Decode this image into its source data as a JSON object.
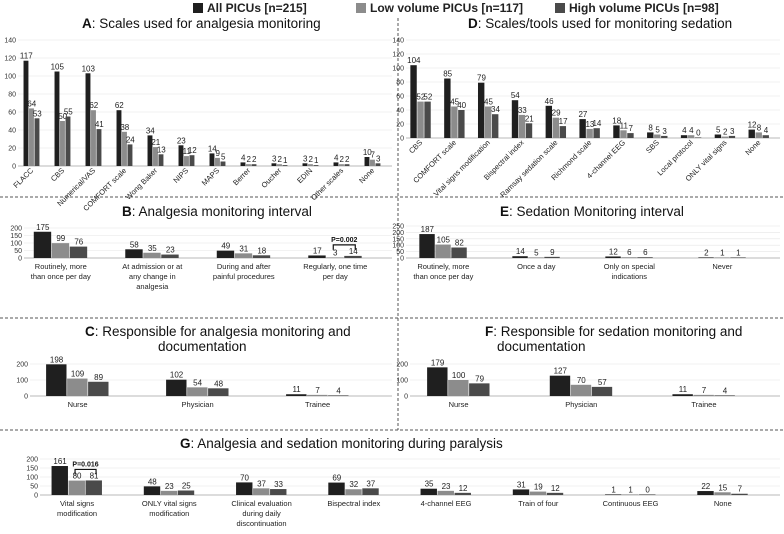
{
  "legend": [
    {
      "label": "All PICUs [n=215]",
      "color": "#1f1f1f"
    },
    {
      "label": "Low volume PICUs [n=117]",
      "color": "#8c8c8c"
    },
    {
      "label": "High volume PICUs [n=98]",
      "color": "#4a4a4a"
    }
  ],
  "colors": [
    "#1f1f1f",
    "#8c8c8c",
    "#4a4a4a"
  ],
  "chart_data": [
    {
      "id": "A",
      "type": "bar",
      "letter": "A",
      "title": ": Scales used for analgesia monitoring",
      "categories": [
        "FLACC",
        "CBS",
        "Numerical/VAS",
        "COMFORT scale",
        "Wong Baker",
        "NIPS",
        "MAPS",
        "Berrer",
        "Oucher",
        "EDIN",
        "Other scales",
        "None"
      ],
      "series": [
        {
          "name": "All PICUs [n=215]",
          "values": [
            117,
            105,
            103,
            62,
            34,
            23,
            14,
            4,
            3,
            3,
            4,
            10
          ]
        },
        {
          "name": "Low volume PICUs [n=117]",
          "values": [
            64,
            50,
            62,
            38,
            21,
            11,
            9,
            2,
            2,
            2,
            2,
            7
          ]
        },
        {
          "name": "High volume PICUs [n=98]",
          "values": [
            53,
            55,
            41,
            24,
            13,
            12,
            5,
            2,
            1,
            1,
            2,
            3
          ]
        }
      ],
      "yticks": [
        0,
        20,
        40,
        60,
        80,
        100,
        120,
        140
      ],
      "ylim": [
        0,
        140
      ]
    },
    {
      "id": "D",
      "type": "bar",
      "letter": "D",
      "title": ": Scales/tools used for monitoring sedation",
      "categories": [
        "CBS",
        "COMFORT scale",
        "Vital signs modification",
        "Bispectral index",
        "Ramsay sedation scale",
        "Richmond scale",
        "4-channel EEG",
        "SBS",
        "Local protocol",
        "ONLY vital signs",
        "None"
      ],
      "series": [
        {
          "name": "All PICUs [n=215]",
          "values": [
            104,
            85,
            79,
            54,
            46,
            27,
            18,
            8,
            4,
            5,
            12
          ]
        },
        {
          "name": "Low volume PICUs [n=117]",
          "values": [
            52,
            45,
            45,
            33,
            29,
            13,
            11,
            5,
            4,
            2,
            8
          ]
        },
        {
          "name": "High volume PICUs [n=98]",
          "values": [
            52,
            40,
            34,
            21,
            17,
            14,
            7,
            3,
            0,
            3,
            4
          ]
        }
      ],
      "yticks": [
        0,
        20,
        40,
        60,
        80,
        100,
        120,
        140
      ],
      "ylim": [
        0,
        140
      ]
    },
    {
      "id": "B",
      "type": "bar",
      "letter": "B",
      "title": ": Analgesia monitoring interval",
      "categories": [
        "Routinely, more than once per day",
        "At admission or at any change in analgesia",
        "During and after painful procedures",
        "Regularly, one time per day"
      ],
      "series": [
        {
          "name": "All PICUs [n=215]",
          "values": [
            175,
            58,
            49,
            17
          ]
        },
        {
          "name": "Low volume PICUs [n=117]",
          "values": [
            99,
            35,
            31,
            3
          ]
        },
        {
          "name": "High volume PICUs [n=98]",
          "values": [
            76,
            23,
            18,
            14
          ]
        }
      ],
      "annotation": "P=0.002",
      "yticks": [
        0,
        50,
        100,
        150,
        200
      ],
      "ylim": [
        0,
        200
      ]
    },
    {
      "id": "E",
      "type": "bar",
      "letter": "E",
      "title": ": Sedation Monitoring interval",
      "categories": [
        "Routinely, more than once per day",
        "Once a day",
        "Only on special indications",
        "Never"
      ],
      "series": [
        {
          "name": "All PICUs [n=215]",
          "values": [
            187,
            14,
            12,
            2
          ]
        },
        {
          "name": "Low volume PICUs [n=117]",
          "values": [
            105,
            5,
            6,
            1
          ]
        },
        {
          "name": "High volume PICUs [n=98]",
          "values": [
            82,
            9,
            6,
            1
          ]
        }
      ],
      "yticks": [
        0,
        50,
        100,
        150,
        200,
        250
      ],
      "ylim": [
        0,
        250
      ]
    },
    {
      "id": "C",
      "type": "bar",
      "letter": "C",
      "title": ": Responsible for analgesia monitoring and documentation",
      "categories": [
        "Nurse",
        "Physician",
        "Trainee"
      ],
      "series": [
        {
          "name": "All PICUs [n=215]",
          "values": [
            198,
            102,
            11
          ]
        },
        {
          "name": "Low volume PICUs [n=117]",
          "values": [
            109,
            54,
            7
          ]
        },
        {
          "name": "High volume PICUs [n=98]",
          "values": [
            89,
            48,
            4
          ]
        }
      ],
      "yticks": [
        0,
        100,
        200
      ],
      "ylim": [
        0,
        200
      ]
    },
    {
      "id": "F",
      "type": "bar",
      "letter": "F",
      "title": ": Responsible for sedation monitoring and documentation",
      "categories": [
        "Nurse",
        "Physician",
        "Trainee"
      ],
      "series": [
        {
          "name": "All PICUs [n=215]",
          "values": [
            179,
            127,
            11
          ]
        },
        {
          "name": "Low volume PICUs [n=117]",
          "values": [
            100,
            70,
            7
          ]
        },
        {
          "name": "High volume PICUs [n=98]",
          "values": [
            79,
            57,
            4
          ]
        }
      ],
      "yticks": [
        0,
        100,
        200
      ],
      "ylim": [
        0,
        200
      ]
    },
    {
      "id": "G",
      "type": "bar",
      "letter": "G",
      "title": ": Analgesia and sedation monitoring during paralysis",
      "categories": [
        "Vital signs modification",
        "ONLY vital signs modification",
        "Clinical evaluation during daily discontinuation",
        "Bispectral index",
        "4-channel EEG",
        "Train of four",
        "Continuous EEG",
        "None"
      ],
      "series": [
        {
          "name": "All PICUs [n=215]",
          "values": [
            161,
            48,
            70,
            69,
            35,
            31,
            1,
            22
          ]
        },
        {
          "name": "Low volume PICUs [n=117]",
          "values": [
            80,
            23,
            37,
            32,
            23,
            19,
            1,
            15
          ]
        },
        {
          "name": "High volume PICUs [n=98]",
          "values": [
            81,
            25,
            33,
            37,
            12,
            12,
            0,
            7
          ]
        }
      ],
      "annotation": "P=0.016",
      "yticks": [
        0,
        50,
        100,
        150,
        200
      ],
      "ylim": [
        0,
        200
      ]
    }
  ]
}
